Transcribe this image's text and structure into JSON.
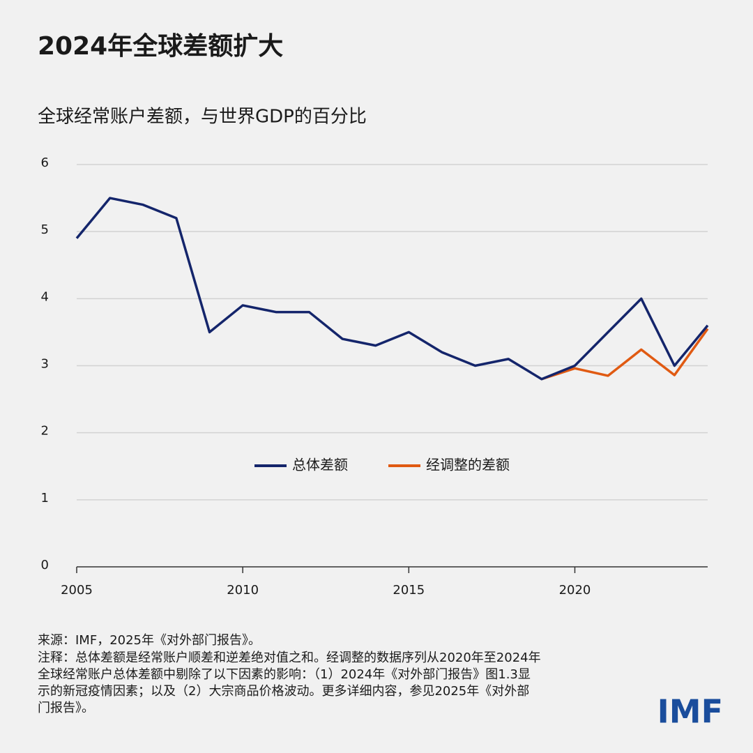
{
  "chart_data": {
    "type": "line",
    "title": "2024年全球差额扩大",
    "subtitle": "全球经常账户差额，与世界GDP的百分比",
    "x": [
      2005,
      2006,
      2007,
      2008,
      2009,
      2010,
      2011,
      2012,
      2013,
      2014,
      2015,
      2016,
      2017,
      2018,
      2019,
      2020,
      2021,
      2022,
      2023,
      2024
    ],
    "series": [
      {
        "name": "总体差额",
        "color": "#14256b",
        "values": [
          4.9,
          5.5,
          5.4,
          5.2,
          3.5,
          3.9,
          3.8,
          3.8,
          3.4,
          3.3,
          3.5,
          3.2,
          3.0,
          3.1,
          2.8,
          3.0,
          3.5,
          4.0,
          3.0,
          3.6
        ]
      },
      {
        "name": "经调整的差额",
        "color": "#e05a12",
        "values": [
          null,
          null,
          null,
          null,
          null,
          null,
          null,
          null,
          null,
          null,
          null,
          null,
          null,
          null,
          2.8,
          2.96,
          2.85,
          3.24,
          2.86,
          3.55
        ]
      }
    ],
    "xlim": [
      2005,
      2024
    ],
    "xticks": [
      2005,
      2010,
      2015,
      2020
    ],
    "ylim": [
      0,
      6
    ],
    "yticks": [
      0,
      1,
      2,
      3,
      4,
      5,
      6
    ],
    "grid": true,
    "legend": "center",
    "source": "来源：IMF，2025年《对外部门报告》。",
    "notes": [
      "注释：总体差额是经常账户顺差和逆差绝对值之和。经调整的数据序列从2020年至2024年",
      "全球经常账户总体差额中剔除了以下因素的影响：（1）2024年《对外部门报告》图1.3显",
      "示的新冠疫情因素；以及（2）大宗商品价格波动。更多详细内容，参见2025年《对外部",
      "门报告》。"
    ],
    "logo": "IMF"
  }
}
